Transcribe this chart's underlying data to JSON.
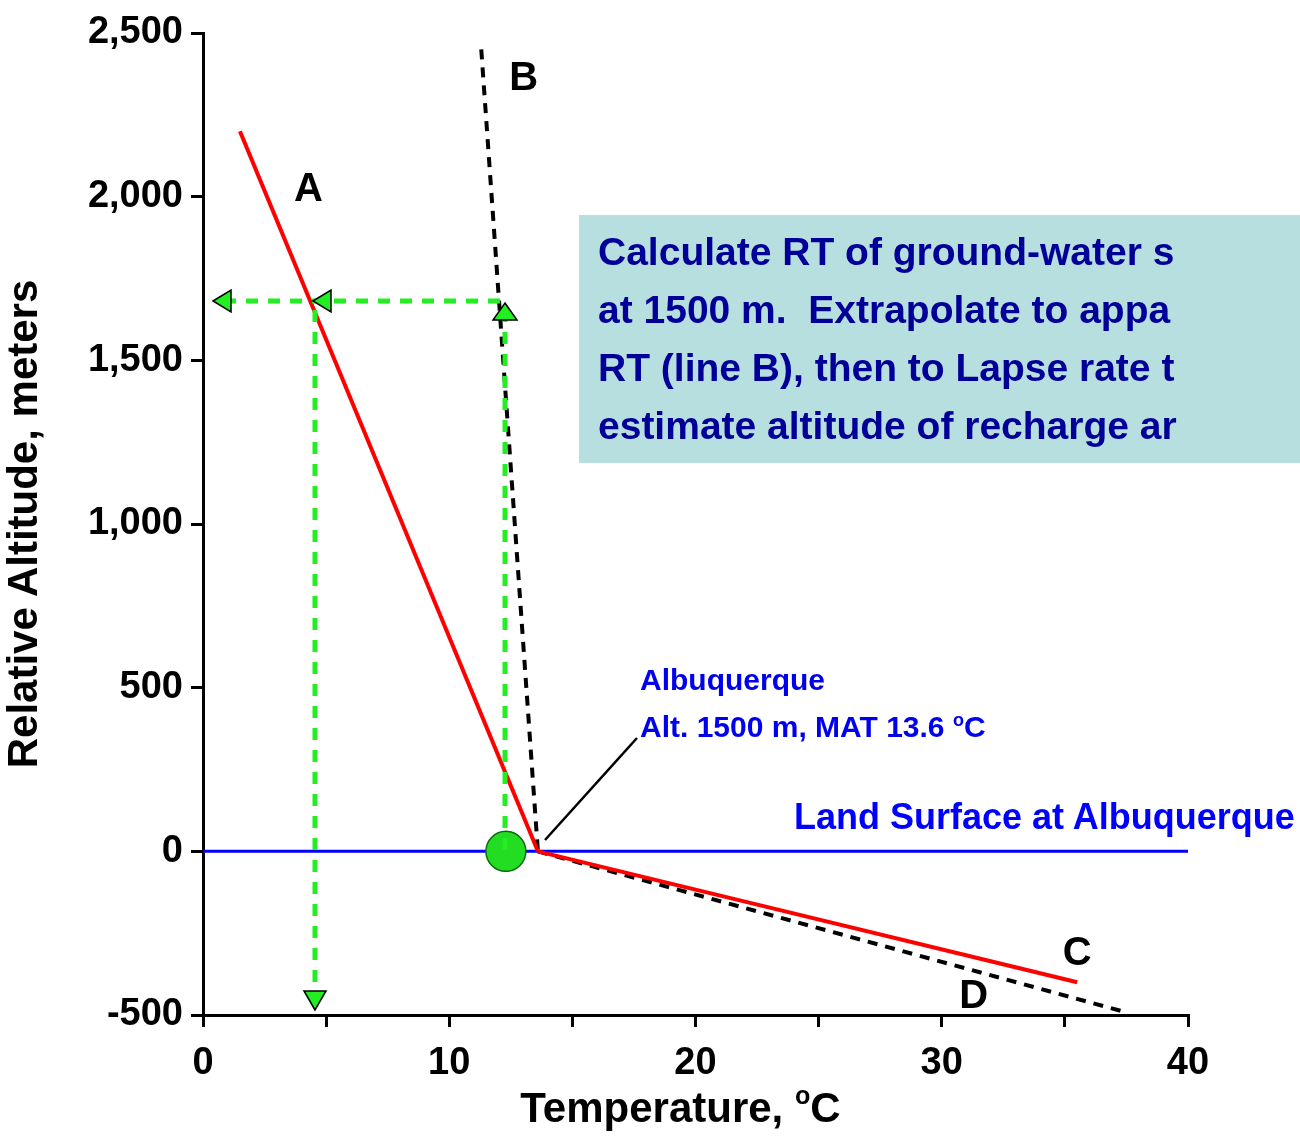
{
  "chart_data": {
    "type": "line",
    "xlabel": "Temperature, $^{o}$C",
    "ylabel": "Relative Altitude, meters",
    "xlim": [
      0,
      40
    ],
    "xticks": [
      0,
      {
        "value": 5,
        "label": null
      },
      10,
      {
        "value": 15,
        "label": null
      },
      20,
      {
        "value": 25,
        "label": null
      },
      30,
      {
        "value": 35,
        "label": null
      },
      40
    ],
    "ylim": [
      -500,
      2500
    ],
    "yticks": [
      {
        "value": -500,
        "label": "-500"
      },
      0,
      {
        "value": 500,
        "label": "500"
      },
      {
        "value": 1000,
        "label": "1,000"
      },
      {
        "value": 1500,
        "label": "1,500"
      },
      {
        "value": 2000,
        "label": "2,000"
      },
      {
        "value": 2500,
        "label": "2,500"
      }
    ],
    "grid": false,
    "series": [
      {
        "color": "#ff0000",
        "x": [
          1.5,
          13.6
        ],
        "values": [
          2200,
          0
        ],
        "line_style": "solid"
      },
      {
        "color": "#ff0000",
        "x": [
          13.6,
          35.5
        ],
        "values": [
          0,
          -400
        ],
        "line_style": "solid"
      },
      {
        "color": "#000000",
        "x": [
          11.3,
          13.6
        ],
        "values": [
          2450,
          0
        ],
        "line_style": "dashed"
      },
      {
        "color": "#000000",
        "x": [
          13.6,
          37.4
        ],
        "values": [
          0,
          -490
        ],
        "line_style": "dashed"
      },
      {
        "type": "scatter",
        "color": "#22dd22",
        "x": [
          12.3
        ],
        "values": [
          0
        ],
        "marker": "circle"
      }
    ],
    "ref_lines": [
      {
        "axis": "y",
        "value": 0,
        "label": "Land Surface at Albuquerque",
        "color": "#0000ff"
      }
    ],
    "annotations": [
      {
        "text": "A",
        "x": 2.5,
        "y": 2020
      },
      {
        "text": "B",
        "x": 11.4,
        "y": 2360
      },
      {
        "text": "C",
        "x": 35.5,
        "y": -400
      },
      {
        "text": "D",
        "x": 31.3,
        "y": -364
      },
      "Albuquerque\nAlt. 1500 m, MAT 13.6 $^{o}$C",
      "Calculate RT of ground-water s\nat 1500 m.  Extrapolate to appa\nRT (line B), then to Lapse rate t\nestimate altitude of recharge ar"
    ]
  }
}
